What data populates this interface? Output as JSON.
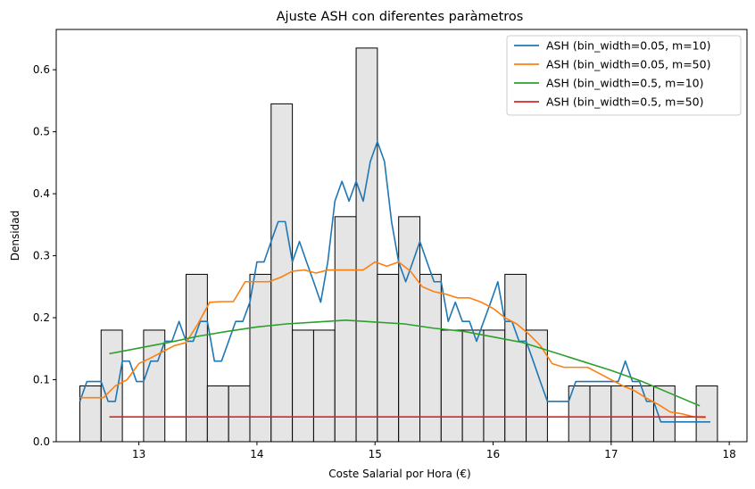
{
  "chart_data": {
    "type": "bar+line",
    "title": "Ajuste ASH con diferentes paràmetros",
    "xlabel": "Coste Salarial por Hora (€)",
    "ylabel": "Densidad",
    "xlim": [
      12.3,
      18.15
    ],
    "ylim": [
      0,
      0.665
    ],
    "xticks": [
      13,
      14,
      15,
      16,
      17,
      18
    ],
    "xtick_labels": [
      "13",
      "14",
      "15",
      "16",
      "17",
      "18"
    ],
    "yticks": [
      0,
      0.1,
      0.2,
      0.3,
      0.4,
      0.5,
      0.6
    ],
    "ytick_labels": [
      "0.0",
      "0.1",
      "0.2",
      "0.3",
      "0.4",
      "0.5",
      "0.6"
    ],
    "legend_position": "top-right",
    "histogram": {
      "bin_edges": [
        12.5,
        12.68,
        12.86,
        13.04,
        13.22,
        13.4,
        13.58,
        13.76,
        13.94,
        14.12,
        14.3,
        14.48,
        14.66,
        14.84,
        15.02,
        15.2,
        15.38,
        15.56,
        15.74,
        15.92,
        16.1,
        16.28,
        16.46,
        16.64,
        16.82,
        17.0,
        17.18,
        17.36,
        17.54,
        17.72,
        17.9
      ],
      "values": [
        0.09,
        0.18,
        0,
        0.18,
        0,
        0.27,
        0.09,
        0.09,
        0.27,
        0.545,
        0.18,
        0.18,
        0.363,
        0.635,
        0.27,
        0.363,
        0.27,
        0.18,
        0.18,
        0.18,
        0.27,
        0.18,
        0,
        0.09,
        0.09,
        0.09,
        0.09,
        0.09,
        0,
        0.09
      ],
      "fill": "#e5e5e5",
      "edge": "#000000"
    },
    "series": [
      {
        "name": "ASH (bin_width=0.05, m=10)",
        "color": "#1f77b4",
        "x": [
          12.5,
          12.56,
          12.62,
          12.68,
          12.74,
          12.8,
          12.86,
          12.92,
          12.98,
          13.04,
          13.1,
          13.16,
          13.22,
          13.28,
          13.34,
          13.4,
          13.46,
          13.52,
          13.58,
          13.64,
          13.7,
          13.76,
          13.82,
          13.88,
          13.94,
          14.0,
          14.06,
          14.12,
          14.18,
          14.24,
          14.3,
          14.36,
          14.42,
          14.48,
          14.54,
          14.6,
          14.66,
          14.72,
          14.78,
          14.84,
          14.9,
          14.96,
          15.02,
          15.08,
          15.14,
          15.2,
          15.26,
          15.32,
          15.38,
          15.44,
          15.5,
          15.56,
          15.62,
          15.68,
          15.74,
          15.8,
          15.86,
          15.92,
          15.98,
          16.04,
          16.1,
          16.16,
          16.22,
          16.28,
          16.34,
          16.4,
          16.46,
          16.52,
          16.58,
          16.64,
          16.7,
          16.76,
          16.82,
          16.88,
          16.94,
          17.0,
          17.06,
          17.12,
          17.18,
          17.24,
          17.3,
          17.36,
          17.42,
          17.48,
          17.54,
          17.6,
          17.66,
          17.72,
          17.78,
          17.84
        ],
        "y": [
          0.065,
          0.097,
          0.097,
          0.097,
          0.065,
          0.065,
          0.13,
          0.13,
          0.097,
          0.097,
          0.13,
          0.13,
          0.162,
          0.162,
          0.194,
          0.162,
          0.162,
          0.194,
          0.194,
          0.13,
          0.13,
          0.162,
          0.194,
          0.194,
          0.225,
          0.29,
          0.29,
          0.323,
          0.355,
          0.355,
          0.29,
          0.323,
          0.29,
          0.258,
          0.225,
          0.29,
          0.388,
          0.42,
          0.388,
          0.42,
          0.388,
          0.452,
          0.484,
          0.452,
          0.355,
          0.29,
          0.258,
          0.29,
          0.323,
          0.29,
          0.258,
          0.258,
          0.194,
          0.225,
          0.194,
          0.194,
          0.162,
          0.194,
          0.225,
          0.258,
          0.194,
          0.194,
          0.162,
          0.162,
          0.13,
          0.097,
          0.065,
          0.065,
          0.065,
          0.065,
          0.097,
          0.097,
          0.097,
          0.097,
          0.097,
          0.097,
          0.097,
          0.13,
          0.097,
          0.097,
          0.065,
          0.065,
          0.032,
          0.032,
          0.032,
          0.032,
          0.032,
          0.032,
          0.032,
          0.032
        ]
      },
      {
        "name": "ASH (bin_width=0.05, m=50)",
        "color": "#ff7f0e",
        "x": [
          12.5,
          12.6,
          12.7,
          12.8,
          12.9,
          13.0,
          13.1,
          13.2,
          13.3,
          13.4,
          13.5,
          13.6,
          13.7,
          13.8,
          13.9,
          14.0,
          14.1,
          14.2,
          14.3,
          14.4,
          14.5,
          14.6,
          14.7,
          14.8,
          14.9,
          15.0,
          15.1,
          15.2,
          15.3,
          15.4,
          15.5,
          15.6,
          15.7,
          15.8,
          15.9,
          16.0,
          16.1,
          16.2,
          16.3,
          16.4,
          16.5,
          16.6,
          16.7,
          16.8,
          16.9,
          17.0,
          17.1,
          17.2,
          17.3,
          17.4,
          17.5,
          17.6,
          17.7,
          17.8
        ],
        "y": [
          0.071,
          0.071,
          0.071,
          0.09,
          0.1,
          0.126,
          0.135,
          0.145,
          0.155,
          0.16,
          0.19,
          0.225,
          0.226,
          0.226,
          0.258,
          0.258,
          0.258,
          0.265,
          0.275,
          0.277,
          0.272,
          0.277,
          0.277,
          0.277,
          0.277,
          0.29,
          0.283,
          0.29,
          0.275,
          0.25,
          0.242,
          0.238,
          0.232,
          0.232,
          0.225,
          0.215,
          0.2,
          0.19,
          0.174,
          0.155,
          0.126,
          0.12,
          0.12,
          0.12,
          0.11,
          0.1,
          0.09,
          0.082,
          0.07,
          0.06,
          0.048,
          0.045,
          0.04,
          0.039
        ]
      },
      {
        "name": "ASH (bin_width=0.5, m=10)",
        "color": "#2ca02c",
        "x": [
          12.75,
          13.0,
          13.25,
          13.5,
          13.75,
          14.0,
          14.25,
          14.5,
          14.75,
          15.0,
          15.25,
          15.5,
          15.75,
          16.0,
          16.25,
          16.5,
          16.75,
          17.0,
          17.25,
          17.5,
          17.75
        ],
        "y": [
          0.142,
          0.151,
          0.16,
          0.17,
          0.178,
          0.185,
          0.19,
          0.193,
          0.196,
          0.193,
          0.19,
          0.183,
          0.178,
          0.169,
          0.16,
          0.145,
          0.13,
          0.115,
          0.098,
          0.078,
          0.058
        ]
      },
      {
        "name": "ASH (bin_width=0.5, m=50)",
        "color": "#d62728",
        "x": [
          12.75,
          17.8
        ],
        "y": [
          0.04,
          0.04
        ]
      }
    ]
  }
}
